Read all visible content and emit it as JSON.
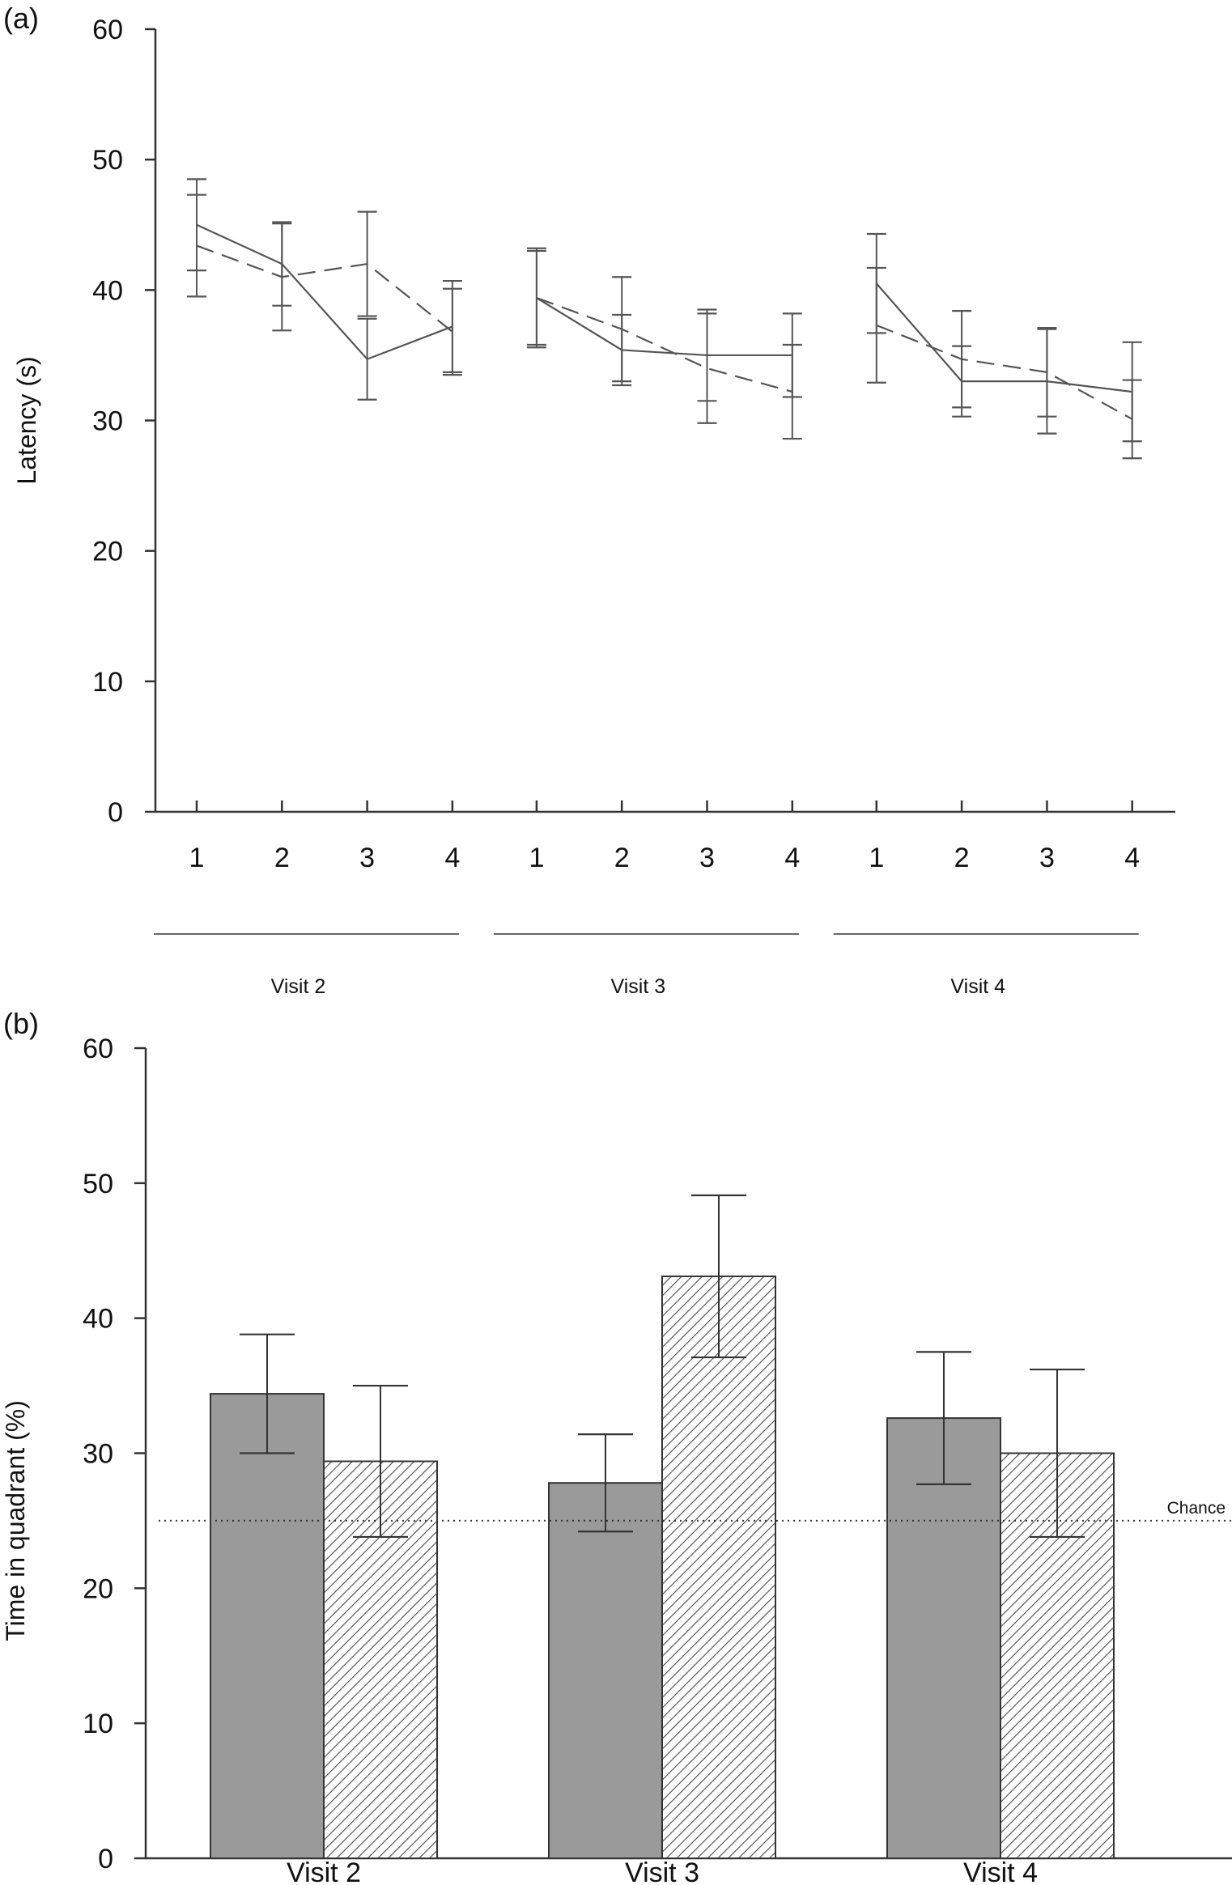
{
  "chart_data": [
    {
      "panel": "(a)",
      "type": "line",
      "title": "",
      "xlabel": "",
      "ylabel": "Latency (s)",
      "ylim": [
        0,
        60
      ],
      "yticks": [
        0,
        10,
        20,
        30,
        40,
        50,
        60
      ],
      "grid": false,
      "groups": [
        {
          "label": "Visit 2",
          "categories": [
            "1",
            "2",
            "3",
            "4"
          ]
        },
        {
          "label": "Visit 3",
          "categories": [
            "1",
            "2",
            "3",
            "4"
          ]
        },
        {
          "label": "Visit 4",
          "categories": [
            "1",
            "2",
            "3",
            "4"
          ]
        }
      ],
      "series": [
        {
          "name": "solid",
          "style": "solid",
          "values": [
            [
              45,
              42,
              34.7,
              37.2
            ],
            [
              39.4,
              35.4,
              35,
              35
            ],
            [
              40.5,
              33,
              33,
              32.2
            ]
          ],
          "error": [
            [
              3.5,
              3.2,
              3.1,
              3.5
            ],
            [
              3.8,
              2.7,
              3.5,
              3.2
            ],
            [
              3.8,
              2.7,
              4,
              3.8
            ]
          ]
        },
        {
          "name": "dashed",
          "style": "dashed",
          "values": [
            [
              43.4,
              41,
              42,
              36.8
            ],
            [
              39.4,
              37,
              34,
              32.2
            ],
            [
              37.3,
              34.7,
              33.7,
              30.1
            ]
          ],
          "error": [
            [
              3.9,
              4.1,
              4,
              3.3
            ],
            [
              3.6,
              4,
              4.2,
              3.6
            ],
            [
              4.4,
              3.7,
              3.4,
              3
            ]
          ]
        }
      ]
    },
    {
      "panel": "(b)",
      "type": "bar",
      "title": "",
      "xlabel": "",
      "ylabel": "Time in quadrant (%)",
      "ylim": [
        0,
        60
      ],
      "yticks": [
        0,
        10,
        20,
        30,
        40,
        50,
        60
      ],
      "grid": false,
      "categories": [
        "Visit 2",
        "Visit 3",
        "Visit 4"
      ],
      "series": [
        {
          "name": "solid",
          "fill": "#9a9a9a",
          "pattern": "solid",
          "values": [
            34.4,
            27.8,
            32.6
          ],
          "error": [
            4.4,
            3.6,
            4.9
          ]
        },
        {
          "name": "hatched",
          "fill": "#ffffff",
          "pattern": "hatched",
          "values": [
            29.4,
            43.1,
            30
          ],
          "error": [
            5.6,
            6,
            6.2
          ]
        }
      ],
      "reference_line": {
        "label": "Chance",
        "value": 25
      }
    }
  ],
  "colors": {
    "solid_bar": "#9a9a9a",
    "axis": "#333333",
    "line": "#555555"
  }
}
